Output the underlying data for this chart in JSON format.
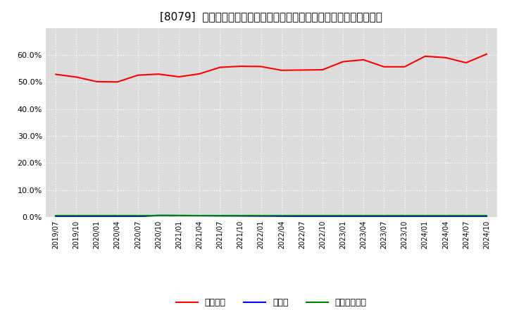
{
  "title": "[8079]  自己資本、のれん、繰延税金資産の総資産に対する比率の推移",
  "x_labels": [
    "2019/07",
    "2019/10",
    "2020/01",
    "2020/04",
    "2020/07",
    "2020/10",
    "2021/01",
    "2021/04",
    "2021/07",
    "2021/10",
    "2022/01",
    "2022/04",
    "2022/07",
    "2022/10",
    "2023/01",
    "2023/04",
    "2023/07",
    "2023/10",
    "2024/01",
    "2024/04",
    "2024/07",
    "2024/10"
  ],
  "jikoshihon": [
    52.8,
    51.8,
    50.1,
    50.0,
    52.5,
    52.9,
    51.9,
    53.0,
    55.4,
    55.8,
    55.7,
    54.3,
    54.4,
    54.5,
    57.5,
    58.2,
    55.6,
    55.6,
    59.5,
    59.0,
    57.1,
    60.3
  ],
  "noren": [
    0.2,
    0.2,
    0.2,
    0.2,
    0.15,
    0.6,
    0.55,
    0.5,
    0.45,
    0.4,
    0.35,
    0.3,
    0.25,
    0.2,
    0.15,
    0.1,
    0.1,
    0.1,
    0.1,
    0.1,
    0.05,
    0.05
  ],
  "kurinobezeikinsisan": [
    0.5,
    0.5,
    0.5,
    0.5,
    0.5,
    0.5,
    0.5,
    0.5,
    0.5,
    0.5,
    0.5,
    0.5,
    0.5,
    0.5,
    0.5,
    0.5,
    0.5,
    0.5,
    0.5,
    0.5,
    0.5,
    0.5
  ],
  "jikoshihon_color": "#ff0000",
  "noren_color": "#0000ff",
  "kurinobezeikinsisan_color": "#008000",
  "bg_color": "#ffffff",
  "plot_bg_color": "#dcdcdc",
  "grid_color": "#ffffff",
  "ylim": [
    0,
    70
  ],
  "yticks": [
    0,
    10,
    20,
    30,
    40,
    50,
    60
  ],
  "legend_labels": [
    "自己資本",
    "のれん",
    "繰延税金資産"
  ]
}
